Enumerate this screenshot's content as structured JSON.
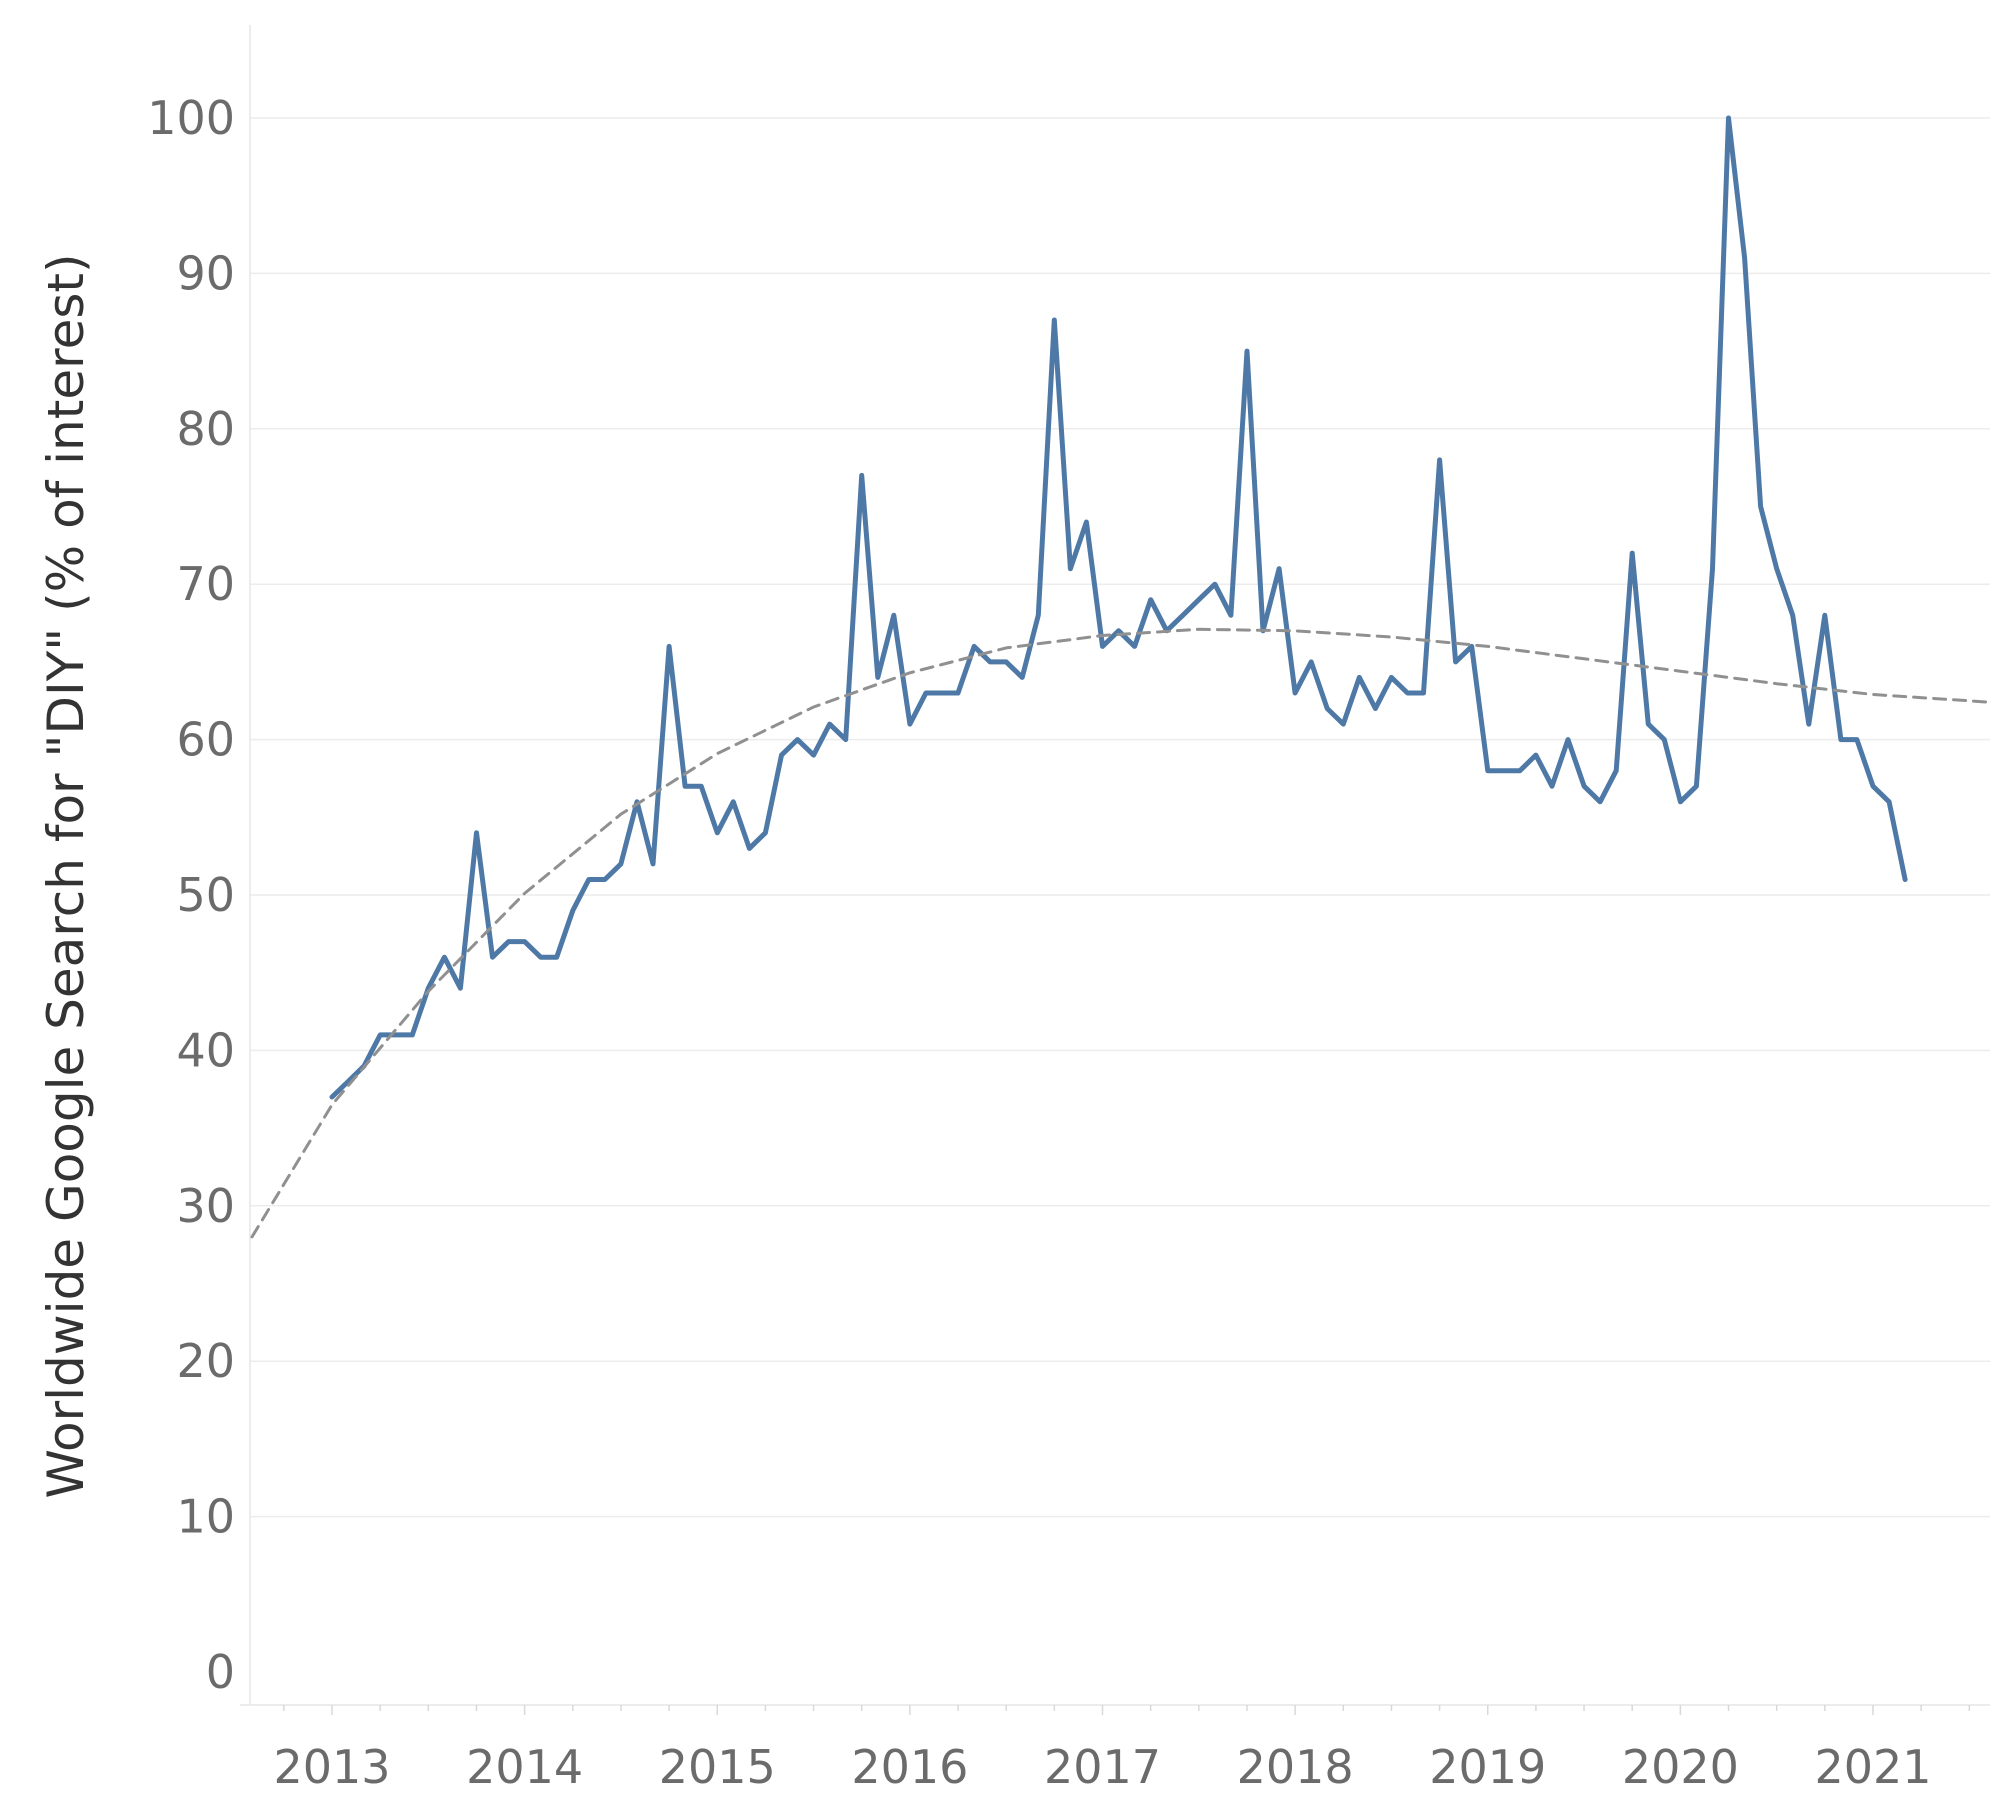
{
  "chart_data": {
    "type": "line",
    "title": "",
    "xlabel": "",
    "ylabel": "Worldwide Google Search for \"DIY\" (% of interest)",
    "ylim": [
      0,
      105
    ],
    "xlim": [
      "2012-07",
      "2021-09"
    ],
    "yticks": [
      0,
      10,
      20,
      30,
      40,
      50,
      60,
      70,
      80,
      90,
      100
    ],
    "xticks": [
      "2013",
      "2014",
      "2015",
      "2016",
      "2017",
      "2018",
      "2019",
      "2020",
      "2021"
    ],
    "grid": true,
    "colors": {
      "series": "#4e79a7",
      "trend": "#909090"
    },
    "series": [
      {
        "style": "solid",
        "x": [
          "2013-01",
          "2013-02",
          "2013-03",
          "2013-04",
          "2013-05",
          "2013-06",
          "2013-07",
          "2013-08",
          "2013-09",
          "2013-10",
          "2013-11",
          "2013-12",
          "2014-01",
          "2014-02",
          "2014-03",
          "2014-04",
          "2014-05",
          "2014-06",
          "2014-07",
          "2014-08",
          "2014-09",
          "2014-10",
          "2014-11",
          "2014-12",
          "2015-01",
          "2015-02",
          "2015-03",
          "2015-04",
          "2015-05",
          "2015-06",
          "2015-07",
          "2015-08",
          "2015-09",
          "2015-10",
          "2015-11",
          "2015-12",
          "2016-01",
          "2016-02",
          "2016-03",
          "2016-04",
          "2016-05",
          "2016-06",
          "2016-07",
          "2016-08",
          "2016-09",
          "2016-10",
          "2016-11",
          "2016-12",
          "2017-01",
          "2017-02",
          "2017-03",
          "2017-04",
          "2017-05",
          "2017-06",
          "2017-07",
          "2017-08",
          "2017-09",
          "2017-10",
          "2017-11",
          "2017-12",
          "2018-01",
          "2018-02",
          "2018-03",
          "2018-04",
          "2018-05",
          "2018-06",
          "2018-07",
          "2018-08",
          "2018-09",
          "2018-10",
          "2018-11",
          "2018-12",
          "2019-01",
          "2019-02",
          "2019-03",
          "2019-04",
          "2019-05",
          "2019-06",
          "2019-07",
          "2019-08",
          "2019-09",
          "2019-10",
          "2019-11",
          "2019-12",
          "2020-01",
          "2020-02",
          "2020-03",
          "2020-04",
          "2020-05",
          "2020-06",
          "2020-07",
          "2020-08",
          "2020-09",
          "2020-10",
          "2020-11",
          "2020-12",
          "2021-01",
          "2021-02",
          "2021-03"
        ],
        "values": [
          37,
          38,
          39,
          41,
          41,
          41,
          44,
          46,
          44,
          54,
          46,
          47,
          47,
          46,
          46,
          49,
          51,
          51,
          52,
          56,
          52,
          66,
          57,
          57,
          54,
          56,
          53,
          54,
          59,
          60,
          59,
          61,
          60,
          77,
          64,
          68,
          61,
          63,
          63,
          63,
          66,
          65,
          65,
          64,
          68,
          87,
          71,
          74,
          66,
          67,
          66,
          69,
          67,
          68,
          69,
          70,
          68,
          85,
          67,
          71,
          63,
          65,
          62,
          61,
          64,
          62,
          64,
          63,
          63,
          78,
          65,
          66,
          58,
          58,
          58,
          59,
          57,
          60,
          57,
          56,
          58,
          72,
          61,
          60,
          56,
          57,
          71,
          100,
          91,
          75,
          71,
          68,
          61,
          68,
          60,
          60,
          57,
          56,
          51
        ]
      },
      {
        "style": "dashed",
        "x": [
          "2012-07",
          "2013-01",
          "2013-07",
          "2014-01",
          "2014-07",
          "2015-01",
          "2015-07",
          "2016-01",
          "2016-07",
          "2017-01",
          "2017-07",
          "2018-01",
          "2018-07",
          "2019-01",
          "2019-07",
          "2020-01",
          "2020-07",
          "2021-01",
          "2021-07",
          "2021-09"
        ],
        "values": [
          28,
          36.5,
          43.8,
          50.1,
          55.2,
          59.1,
          62.1,
          64.3,
          65.9,
          66.7,
          67.1,
          67.0,
          66.6,
          66.0,
          65.2,
          64.4,
          63.6,
          62.9,
          62.5,
          62.4
        ]
      }
    ]
  }
}
